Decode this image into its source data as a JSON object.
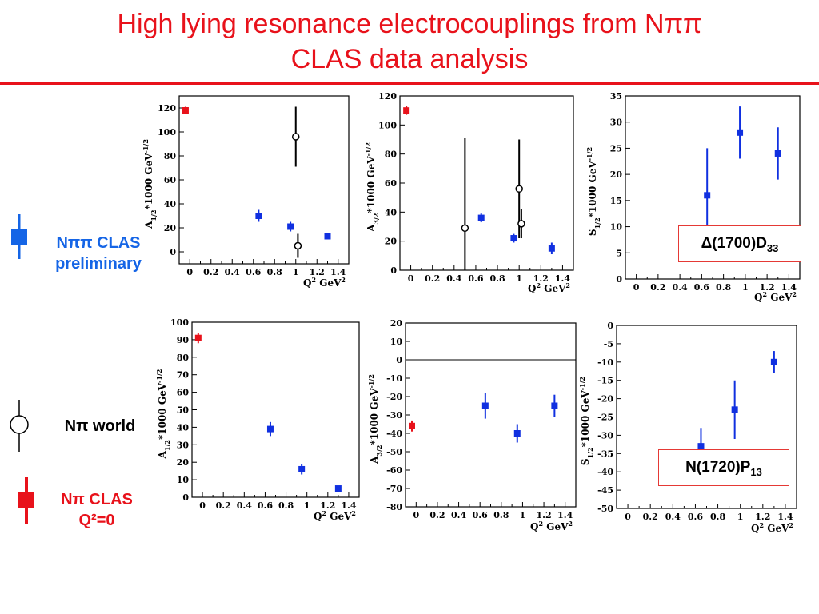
{
  "slide": {
    "title_line1": "High lying resonance electrocouplings from Nππ",
    "title_line2": "CLAS data analysis"
  },
  "legend": {
    "npipi": {
      "line1": "Nππ CLAS",
      "line2": "preliminary",
      "color": "#1565e6"
    },
    "npi_world": {
      "label": "Nπ world",
      "color": "#000000"
    },
    "npi_clas": {
      "line1": "Nπ CLAS",
      "line2": "Q²=0",
      "color": "#e8121b"
    }
  },
  "resonances": {
    "top": "Δ(1700)D33",
    "bottom": "N(1720)P13"
  },
  "colors": {
    "title": "#e8121b",
    "clas_npipi": "#1030e0",
    "clas_npi": "#e8121b",
    "world": "#000000"
  },
  "chart_data": [
    {
      "type": "scatter",
      "ylabel": "A1/2*1000 GeV^-1/2",
      "xlabel": "Q2 GeV2",
      "xlim": [
        -0.1,
        1.5
      ],
      "ylim": [
        -10,
        130
      ],
      "xticks": [
        "0",
        "0.2",
        "0.4",
        "0.6",
        "0.8",
        "1",
        "1.2",
        "1.4"
      ],
      "yticks": [
        "0",
        "20",
        "40",
        "60",
        "80",
        "100",
        "120"
      ],
      "series": [
        {
          "kind": "npi_clas",
          "points": [
            {
              "x": -0.04,
              "y": 118,
              "err": 3
            }
          ]
        },
        {
          "kind": "npipi",
          "points": [
            {
              "x": 0.65,
              "y": 30,
              "err": 5
            },
            {
              "x": 0.95,
              "y": 21,
              "err": 4
            },
            {
              "x": 1.3,
              "y": 13,
              "err": 2
            }
          ]
        },
        {
          "kind": "world",
          "points": [
            {
              "x": 1.0,
              "y": 96,
              "err": 25
            },
            {
              "x": 1.02,
              "y": 5,
              "err": 10
            }
          ]
        }
      ]
    },
    {
      "type": "scatter",
      "ylabel": "A3/2*1000 GeV^-1/2",
      "xlabel": "Q2 GeV2",
      "xlim": [
        -0.1,
        1.5
      ],
      "ylim": [
        0,
        120
      ],
      "xticks": [
        "0",
        "0.2",
        "0.4",
        "0.6",
        "0.8",
        "1",
        "1.2",
        "1.4"
      ],
      "yticks": [
        "0",
        "20",
        "40",
        "60",
        "80",
        "100",
        "120"
      ],
      "series": [
        {
          "kind": "npi_clas",
          "points": [
            {
              "x": -0.04,
              "y": 110,
              "err": 3
            }
          ]
        },
        {
          "kind": "npipi",
          "points": [
            {
              "x": 0.65,
              "y": 36,
              "err": 3
            },
            {
              "x": 0.95,
              "y": 22,
              "err": 3
            },
            {
              "x": 1.3,
              "y": 15,
              "err": 4
            }
          ]
        },
        {
          "kind": "world",
          "points": [
            {
              "x": 0.5,
              "y": 29,
              "err": 62
            },
            {
              "x": 1.0,
              "y": 56,
              "err": 34
            },
            {
              "x": 1.02,
              "y": 32,
              "err": 10
            }
          ]
        }
      ]
    },
    {
      "type": "scatter",
      "ylabel": "S1/2*1000 GeV^-1/2",
      "xlabel": "Q2 GeV2",
      "xlim": [
        -0.1,
        1.5
      ],
      "ylim": [
        0,
        35
      ],
      "xticks": [
        "0",
        "0.2",
        "0.4",
        "0.6",
        "0.8",
        "1",
        "1.2",
        "1.4"
      ],
      "yticks": [
        "0",
        "5",
        "10",
        "15",
        "20",
        "25",
        "30",
        "35"
      ],
      "series": [
        {
          "kind": "npipi",
          "points": [
            {
              "x": 0.65,
              "y": 16,
              "err": 9
            },
            {
              "x": 0.95,
              "y": 28,
              "err": 5
            },
            {
              "x": 1.3,
              "y": 24,
              "err": 5
            }
          ]
        }
      ]
    },
    {
      "type": "scatter",
      "ylabel": "A1/2*1000 GeV^-1/2",
      "xlabel": "Q2 GeV2",
      "xlim": [
        -0.1,
        1.5
      ],
      "ylim": [
        0,
        100
      ],
      "xticks": [
        "0",
        "0.2",
        "0.4",
        "0.6",
        "0.8",
        "1",
        "1.2",
        "1.4"
      ],
      "yticks": [
        "0",
        "10",
        "20",
        "30",
        "40",
        "50",
        "60",
        "70",
        "80",
        "90",
        "100"
      ],
      "series": [
        {
          "kind": "npi_clas",
          "points": [
            {
              "x": -0.04,
              "y": 91,
              "err": 3
            }
          ]
        },
        {
          "kind": "npipi",
          "points": [
            {
              "x": 0.65,
              "y": 39,
              "err": 4
            },
            {
              "x": 0.95,
              "y": 16,
              "err": 3
            },
            {
              "x": 1.3,
              "y": 5,
              "err": 1
            }
          ]
        }
      ]
    },
    {
      "type": "scatter",
      "ylabel": "A3/2*1000 GeV^-1/2",
      "xlabel": "Q2 GeV2",
      "xlim": [
        -0.1,
        1.5
      ],
      "ylim": [
        -80,
        20
      ],
      "zero_line": true,
      "xticks": [
        "0",
        "0.2",
        "0.4",
        "0.6",
        "0.8",
        "1",
        "1.2",
        "1.4"
      ],
      "yticks": [
        "-80",
        "-70",
        "-60",
        "-50",
        "-40",
        "-30",
        "-20",
        "-10",
        "0",
        "10",
        "20"
      ],
      "series": [
        {
          "kind": "npi_clas",
          "points": [
            {
              "x": -0.04,
              "y": -36,
              "err": 3
            }
          ]
        },
        {
          "kind": "npipi",
          "points": [
            {
              "x": 0.65,
              "y": -25,
              "err": 7
            },
            {
              "x": 0.95,
              "y": -40,
              "err": 5
            },
            {
              "x": 1.3,
              "y": -25,
              "err": 6
            }
          ]
        }
      ]
    },
    {
      "type": "scatter",
      "ylabel": "S1/2*1000 GeV^-1/2",
      "xlabel": "Q2 GeV2",
      "xlim": [
        -0.1,
        1.5
      ],
      "ylim": [
        -50,
        0
      ],
      "xticks": [
        "0",
        "0.2",
        "0.4",
        "0.6",
        "0.8",
        "1",
        "1.2",
        "1.4"
      ],
      "yticks": [
        "-50",
        "-45",
        "-40",
        "-35",
        "-30",
        "-25",
        "-20",
        "-15",
        "-10",
        "-5",
        "0"
      ],
      "series": [
        {
          "kind": "npipi",
          "points": [
            {
              "x": 0.65,
              "y": -33,
              "err": 5
            },
            {
              "x": 0.95,
              "y": -23,
              "err": 8
            },
            {
              "x": 1.3,
              "y": -10,
              "err": 3
            }
          ]
        }
      ]
    }
  ]
}
